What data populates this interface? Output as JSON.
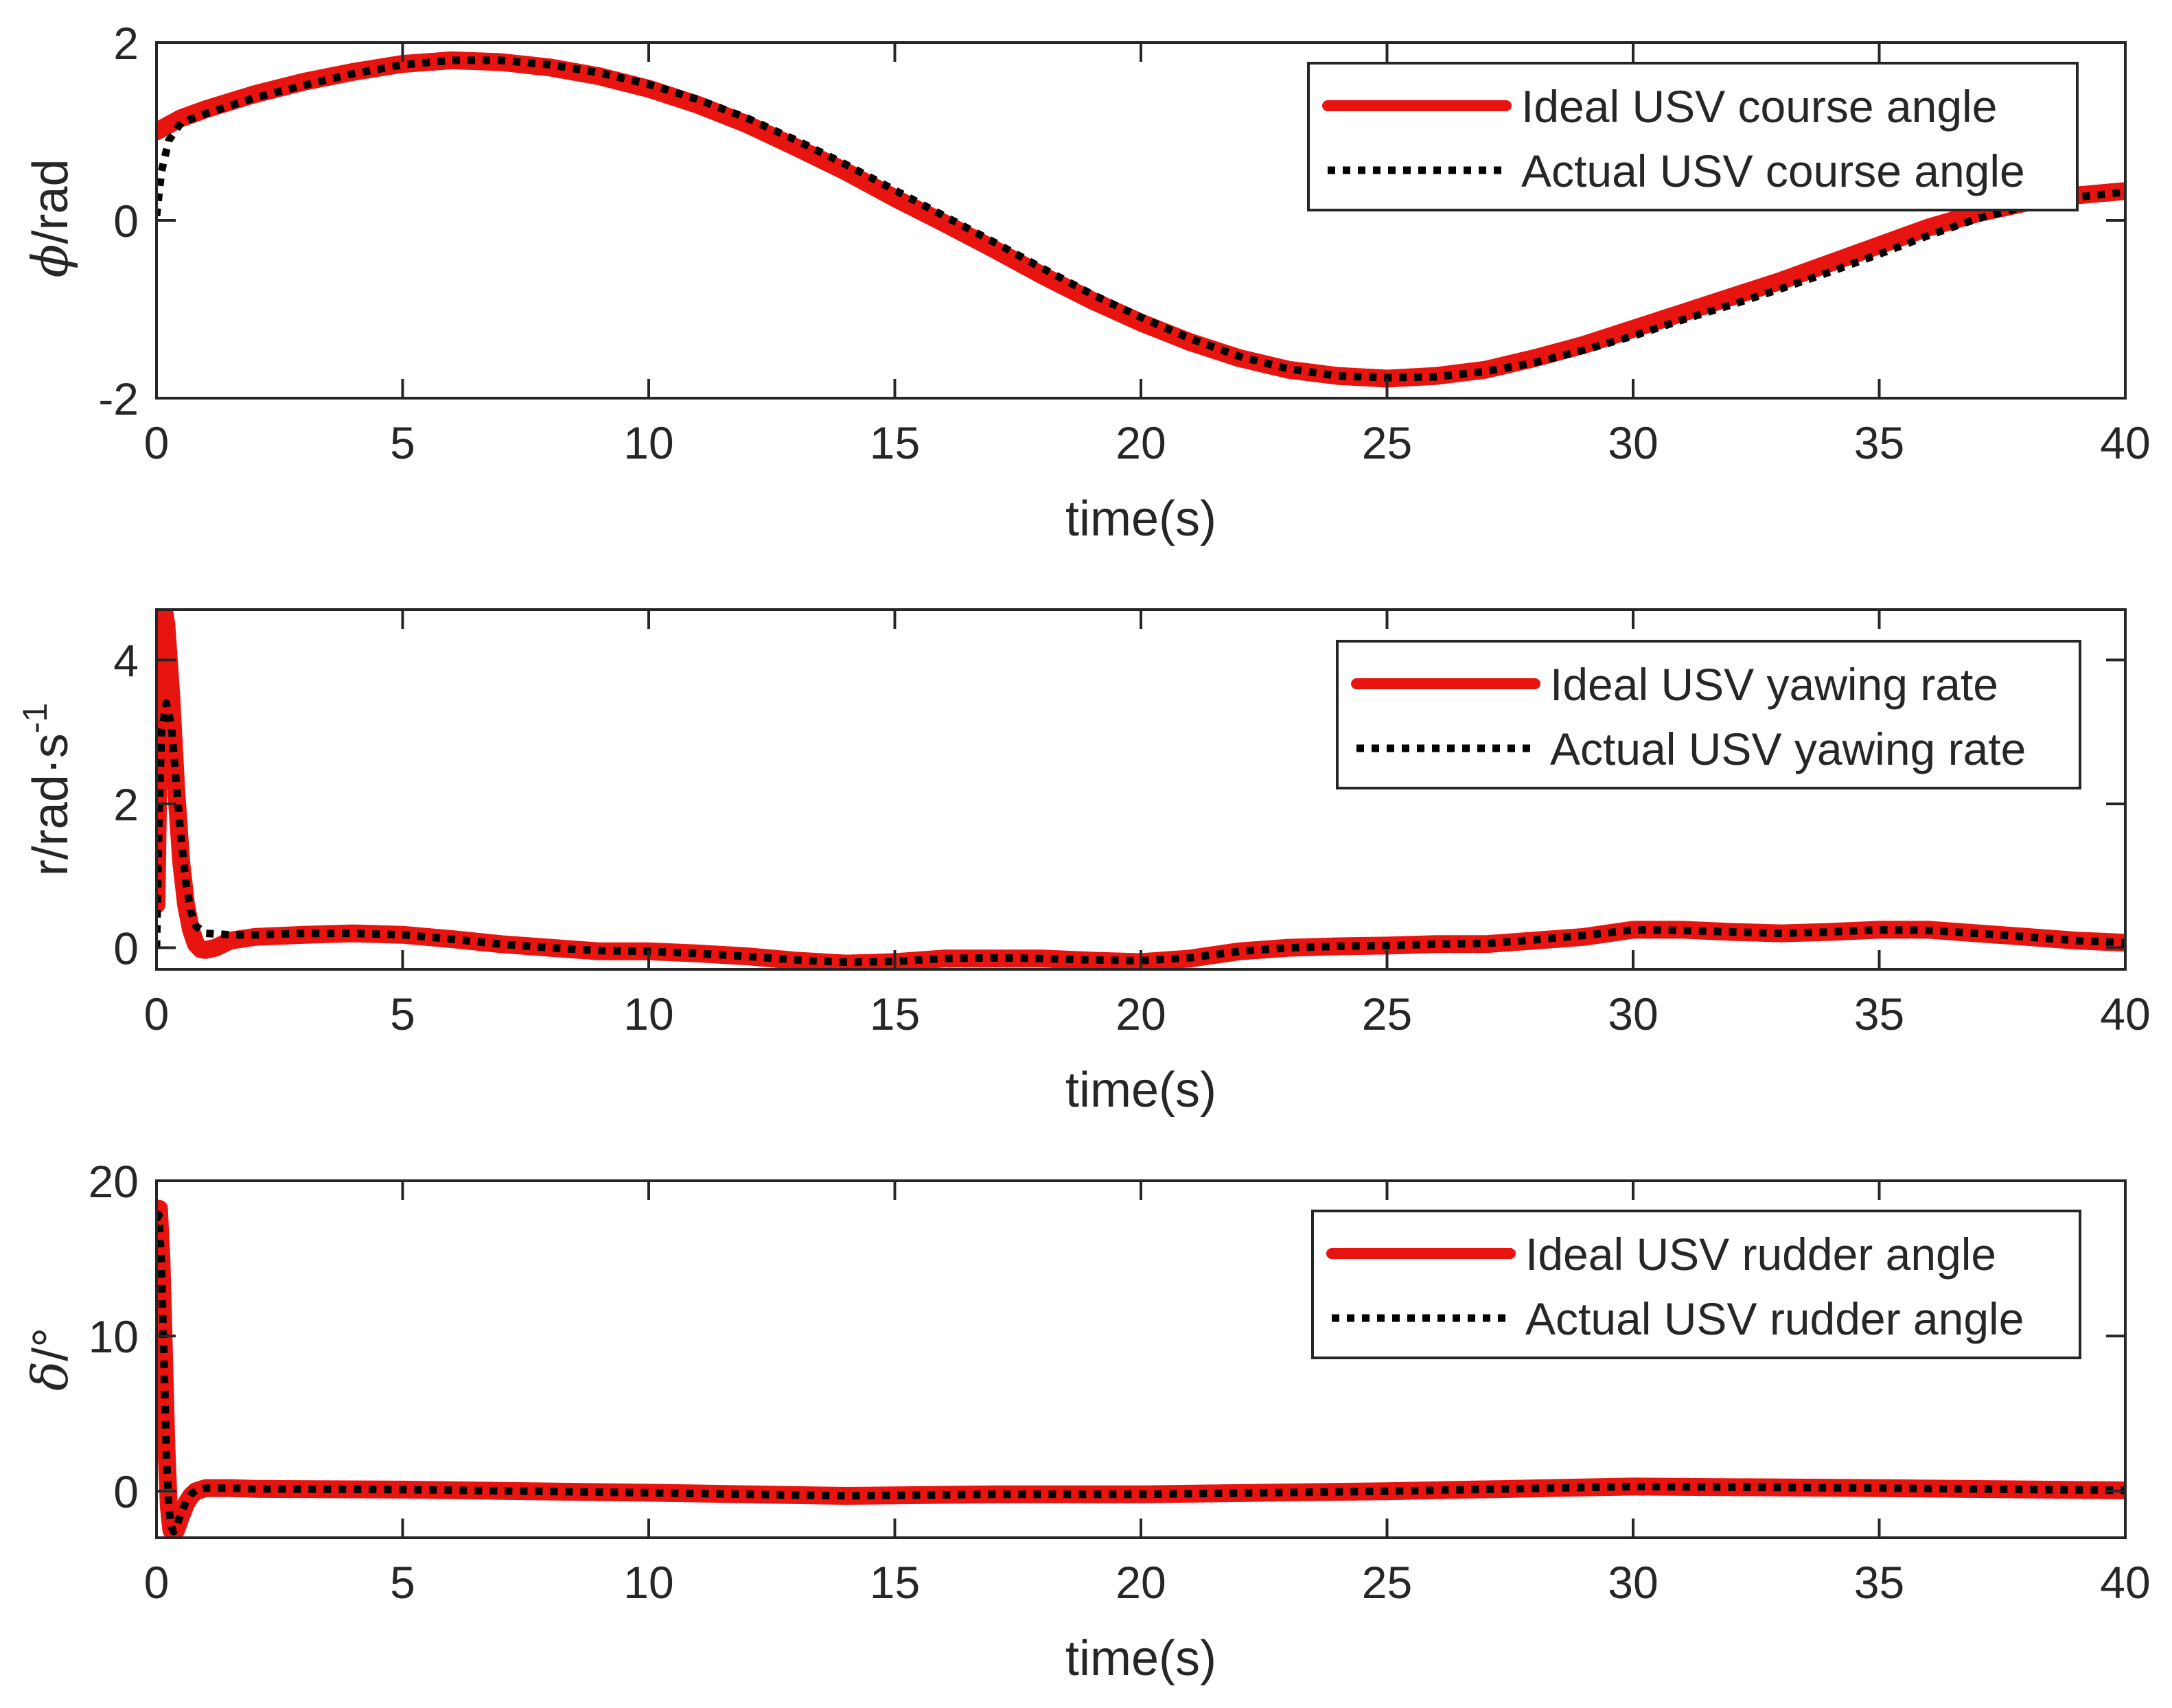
{
  "colors": {
    "ideal": "#e8140f",
    "actual": "#000000",
    "axis": "#262626"
  },
  "chart_data": [
    {
      "type": "line",
      "xlabel": "time(s)",
      "ylabel": "/rad",
      "ylabel_symbol": "ϕ",
      "xlim": [
        0,
        40
      ],
      "ylim": [
        -2,
        2
      ],
      "xticks": [
        0,
        5,
        10,
        15,
        20,
        25,
        30,
        35,
        40
      ],
      "yticks": [
        -2,
        0,
        2
      ],
      "legend_position": "top-right",
      "series": [
        {
          "name": "Ideal USV course angle",
          "style": "ideal",
          "x": [
            0,
            0.5,
            1,
            2,
            3,
            4,
            5,
            6,
            7,
            8,
            9,
            10,
            11,
            12,
            13,
            14,
            15,
            16,
            17,
            18,
            19,
            20,
            21,
            22,
            23,
            24,
            25,
            26,
            27,
            28,
            29,
            30,
            31,
            32,
            33,
            34,
            35,
            36,
            37,
            38,
            39,
            40
          ],
          "y": [
            1.0,
            1.15,
            1.25,
            1.42,
            1.56,
            1.67,
            1.76,
            1.8,
            1.78,
            1.72,
            1.62,
            1.48,
            1.3,
            1.08,
            0.82,
            0.55,
            0.25,
            -0.03,
            -0.32,
            -0.62,
            -0.9,
            -1.15,
            -1.37,
            -1.55,
            -1.68,
            -1.75,
            -1.78,
            -1.75,
            -1.68,
            -1.55,
            -1.4,
            -1.22,
            -1.04,
            -0.86,
            -0.68,
            -0.48,
            -0.28,
            -0.08,
            0.08,
            0.2,
            0.28,
            0.33
          ]
        },
        {
          "name": "Actual USV course angle",
          "style": "actual",
          "x": [
            0,
            0.1,
            0.25,
            0.5,
            1,
            2,
            3,
            4,
            5,
            6,
            7,
            8,
            9,
            10,
            11,
            12,
            13,
            14,
            15,
            16,
            17,
            18,
            19,
            20,
            21,
            22,
            23,
            24,
            25,
            26,
            27,
            28,
            29,
            30,
            31,
            32,
            33,
            34,
            35,
            36,
            37,
            38,
            39,
            40
          ],
          "y": [
            0.05,
            0.55,
            0.9,
            1.1,
            1.2,
            1.38,
            1.52,
            1.65,
            1.75,
            1.8,
            1.8,
            1.75,
            1.66,
            1.53,
            1.36,
            1.15,
            0.9,
            0.63,
            0.34,
            0.05,
            -0.24,
            -0.54,
            -0.83,
            -1.09,
            -1.33,
            -1.53,
            -1.67,
            -1.75,
            -1.77,
            -1.76,
            -1.7,
            -1.6,
            -1.46,
            -1.3,
            -1.12,
            -0.95,
            -0.77,
            -0.58,
            -0.38,
            -0.17,
            0.02,
            0.16,
            0.26,
            0.32
          ]
        }
      ]
    },
    {
      "type": "line",
      "xlabel": "time(s)",
      "ylabel": "r/rad·s",
      "ylabel_sup": "-1",
      "xlim": [
        0,
        40
      ],
      "ylim": [
        -0.3,
        4.7
      ],
      "xticks": [
        0,
        5,
        10,
        15,
        20,
        25,
        30,
        35,
        40
      ],
      "yticks": [
        0,
        2,
        4
      ],
      "legend_position": "top-right",
      "series": [
        {
          "name": "Ideal USV yawing rate",
          "style": "ideal",
          "x": [
            0,
            0.05,
            0.1,
            0.15,
            0.2,
            0.3,
            0.4,
            0.5,
            0.6,
            0.7,
            0.8,
            0.9,
            1.0,
            1.2,
            1.5,
            2,
            3,
            4,
            5,
            6,
            7,
            8,
            9,
            10,
            11,
            12,
            13,
            14,
            15,
            16,
            17,
            18,
            19,
            20,
            21,
            22,
            23,
            24,
            25,
            26,
            27,
            28,
            29,
            30,
            31,
            32,
            33,
            34,
            35,
            36,
            37,
            38,
            39,
            40
          ],
          "y": [
            0.6,
            3.0,
            4.6,
            4.7,
            4.5,
            3.5,
            2.2,
            1.2,
            0.6,
            0.25,
            0.05,
            -0.02,
            -0.03,
            0.0,
            0.1,
            0.15,
            0.18,
            0.2,
            0.18,
            0.12,
            0.05,
            0.0,
            -0.05,
            -0.05,
            -0.08,
            -0.12,
            -0.18,
            -0.22,
            -0.2,
            -0.15,
            -0.15,
            -0.15,
            -0.18,
            -0.2,
            -0.15,
            -0.05,
            0.0,
            0.02,
            0.03,
            0.05,
            0.05,
            0.1,
            0.15,
            0.25,
            0.25,
            0.22,
            0.2,
            0.22,
            0.25,
            0.25,
            0.2,
            0.15,
            0.1,
            0.07
          ]
        },
        {
          "name": "Actual USV yawing rate",
          "style": "actual",
          "x": [
            0,
            0.05,
            0.1,
            0.2,
            0.3,
            0.4,
            0.5,
            0.6,
            0.7,
            0.8,
            1.0,
            1.5,
            2,
            3,
            4,
            5,
            6,
            7,
            8,
            9,
            10,
            11,
            12,
            13,
            14,
            15,
            16,
            17,
            18,
            19,
            20,
            21,
            22,
            23,
            24,
            25,
            26,
            27,
            28,
            29,
            30,
            31,
            32,
            33,
            34,
            35,
            36,
            37,
            38,
            39,
            40
          ],
          "y": [
            0.0,
            1.8,
            3.0,
            3.4,
            3.1,
            2.3,
            1.5,
            0.9,
            0.5,
            0.3,
            0.2,
            0.18,
            0.18,
            0.2,
            0.2,
            0.18,
            0.12,
            0.05,
            0.0,
            -0.04,
            -0.05,
            -0.08,
            -0.12,
            -0.17,
            -0.2,
            -0.19,
            -0.15,
            -0.14,
            -0.15,
            -0.17,
            -0.18,
            -0.14,
            -0.05,
            0.0,
            0.02,
            0.03,
            0.05,
            0.06,
            0.11,
            0.17,
            0.25,
            0.24,
            0.22,
            0.2,
            0.22,
            0.25,
            0.24,
            0.2,
            0.15,
            0.1,
            0.07
          ]
        }
      ]
    },
    {
      "type": "line",
      "xlabel": "time(s)",
      "ylabel": "/°",
      "ylabel_symbol": "δ",
      "xlim": [
        0,
        40
      ],
      "ylim": [
        -3,
        20
      ],
      "xticks": [
        0,
        5,
        10,
        15,
        20,
        25,
        30,
        35,
        40
      ],
      "yticks": [
        0,
        10,
        20
      ],
      "legend_position": "top-right",
      "series": [
        {
          "name": "Ideal USV rudder angle",
          "style": "ideal",
          "x": [
            0,
            0.05,
            0.1,
            0.15,
            0.2,
            0.25,
            0.3,
            0.35,
            0.4,
            0.5,
            0.6,
            0.7,
            0.8,
            1.0,
            1.5,
            2,
            5,
            10,
            14,
            17,
            20,
            25,
            30,
            35,
            40
          ],
          "y": [
            18.0,
            18.2,
            15.0,
            9.0,
            3.0,
            -1.0,
            -2.5,
            -2.8,
            -2.5,
            -1.6,
            -0.8,
            -0.3,
            0.0,
            0.2,
            0.2,
            0.15,
            0.1,
            -0.1,
            -0.3,
            -0.2,
            -0.2,
            0.0,
            0.3,
            0.2,
            0.05
          ]
        },
        {
          "name": "Actual USV rudder angle",
          "style": "actual",
          "x": [
            0,
            0.05,
            0.1,
            0.15,
            0.2,
            0.25,
            0.3,
            0.35,
            0.4,
            0.5,
            0.6,
            0.7,
            0.8,
            1.0,
            1.5,
            2,
            5,
            10,
            14,
            17,
            20,
            25,
            30,
            35,
            40
          ],
          "y": [
            17.5,
            17.8,
            14.5,
            8.5,
            2.5,
            -1.0,
            -2.3,
            -2.6,
            -2.3,
            -1.4,
            -0.7,
            -0.2,
            0.05,
            0.2,
            0.2,
            0.15,
            0.1,
            -0.1,
            -0.3,
            -0.2,
            -0.2,
            0.0,
            0.3,
            0.2,
            0.05
          ]
        }
      ]
    }
  ]
}
